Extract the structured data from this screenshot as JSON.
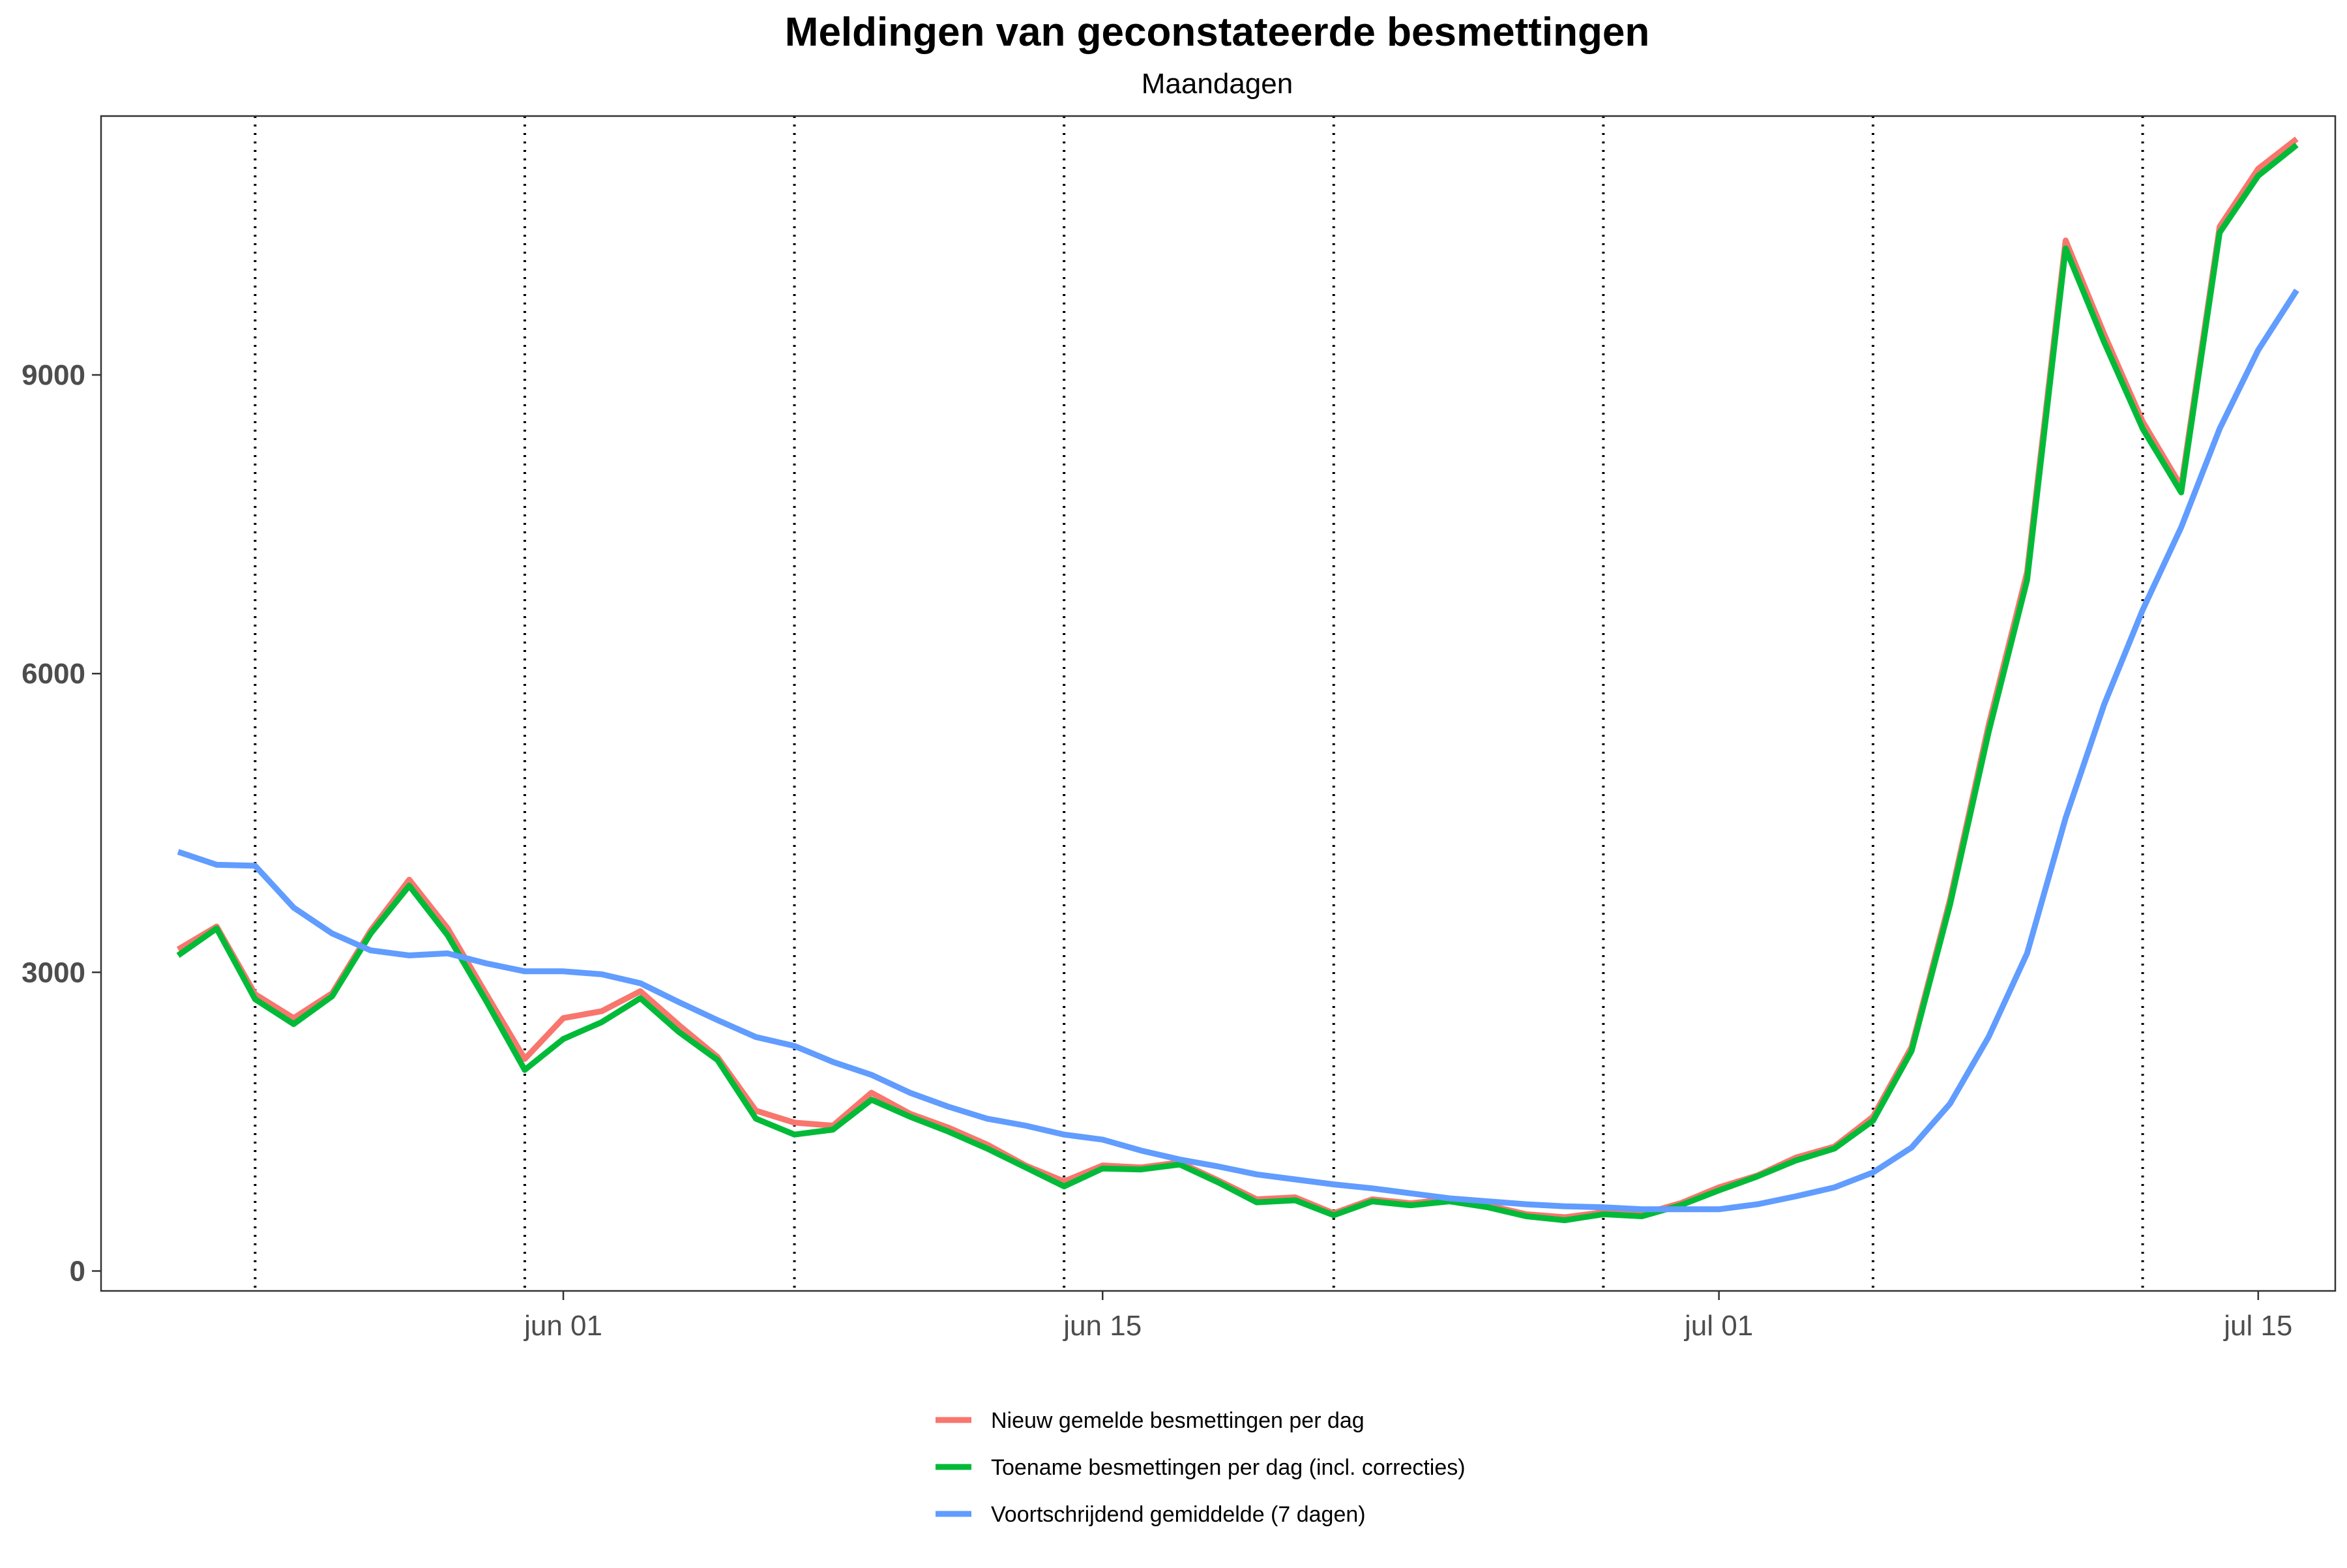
{
  "chart_data": {
    "type": "line",
    "title": "Meldingen van geconstateerde besmettingen",
    "subtitle": "Maandagen",
    "xlabel": "",
    "ylabel": "",
    "x_range": [
      "2020-05-20",
      "2020-07-17"
    ],
    "ylim": [
      -200,
      11600
    ],
    "yticks": [
      0,
      3000,
      6000,
      9000
    ],
    "xticks": [
      {
        "date": "2020-06-01",
        "label": "jun 01"
      },
      {
        "date": "2020-06-15",
        "label": "jun 15"
      },
      {
        "date": "2020-07-01",
        "label": "jul 01"
      },
      {
        "date": "2020-07-15",
        "label": "jul 15"
      }
    ],
    "grid": false,
    "legend_position": "bottom",
    "mondays": [
      "2020-05-24",
      "2020-05-31",
      "2020-06-07",
      "2020-06-14",
      "2020-06-21",
      "2020-06-28",
      "2020-07-05",
      "2020-07-12"
    ],
    "dates": [
      "2020-05-22",
      "2020-05-23",
      "2020-05-24",
      "2020-05-25",
      "2020-05-26",
      "2020-05-27",
      "2020-05-28",
      "2020-05-29",
      "2020-05-30",
      "2020-05-31",
      "2020-06-01",
      "2020-06-02",
      "2020-06-03",
      "2020-06-04",
      "2020-06-05",
      "2020-06-06",
      "2020-06-07",
      "2020-06-08",
      "2020-06-09",
      "2020-06-10",
      "2020-06-11",
      "2020-06-12",
      "2020-06-13",
      "2020-06-14",
      "2020-06-15",
      "2020-06-16",
      "2020-06-17",
      "2020-06-18",
      "2020-06-19",
      "2020-06-20",
      "2020-06-21",
      "2020-06-22",
      "2020-06-23",
      "2020-06-24",
      "2020-06-25",
      "2020-06-26",
      "2020-06-27",
      "2020-06-28",
      "2020-06-29",
      "2020-06-30",
      "2020-07-01",
      "2020-07-02",
      "2020-07-03",
      "2020-07-04",
      "2020-07-05",
      "2020-07-06",
      "2020-07-07",
      "2020-07-08",
      "2020-07-09",
      "2020-07-10",
      "2020-07-11",
      "2020-07-12",
      "2020-07-13",
      "2020-07-14",
      "2020-07-15",
      "2020-07-16"
    ],
    "series": [
      {
        "name": "Nieuw gemelde besmettingen per dag",
        "color": "#F8766D",
        "values": [
          3230,
          3460,
          2780,
          2540,
          2790,
          3420,
          3930,
          3440,
          2780,
          2130,
          2540,
          2610,
          2810,
          2470,
          2150,
          1610,
          1490,
          1460,
          1790,
          1580,
          1440,
          1270,
          1060,
          900,
          1060,
          1040,
          1090,
          910,
          720,
          740,
          580,
          720,
          680,
          720,
          660,
          570,
          540,
          590,
          570,
          680,
          840,
          960,
          1140,
          1250,
          1550,
          2250,
          3730,
          5480,
          7020,
          10350,
          9410,
          8530,
          7880,
          10490,
          11070,
          11370
        ]
      },
      {
        "name": "Toename besmettingen per dag (incl. correcties)",
        "color": "#00BA38",
        "values": [
          3170,
          3440,
          2730,
          2480,
          2760,
          3390,
          3870,
          3370,
          2710,
          2020,
          2330,
          2500,
          2740,
          2400,
          2120,
          1530,
          1370,
          1420,
          1720,
          1550,
          1400,
          1230,
          1040,
          850,
          1030,
          1020,
          1070,
          890,
          690,
          710,
          560,
          700,
          660,
          700,
          640,
          550,
          510,
          570,
          550,
          660,
          810,
          950,
          1110,
          1230,
          1510,
          2210,
          3680,
          5410,
          6940,
          10270,
          9330,
          8460,
          7820,
          10430,
          11000,
          11310
        ]
      },
      {
        "name": "Voortschrijdend gemiddelde (7 dagen)",
        "color": "#619CFF",
        "values": [
          4210,
          4080,
          4070,
          3650,
          3390,
          3220,
          3170,
          3190,
          3090,
          3010,
          3010,
          2980,
          2890,
          2700,
          2520,
          2350,
          2260,
          2100,
          1970,
          1790,
          1650,
          1530,
          1460,
          1370,
          1320,
          1210,
          1120,
          1050,
          970,
          920,
          870,
          830,
          780,
          730,
          700,
          670,
          650,
          640,
          620,
          620,
          620,
          670,
          750,
          840,
          990,
          1240,
          1680,
          2350,
          3190,
          4550,
          5690,
          6640,
          7470,
          8460,
          9250,
          9850
        ]
      }
    ]
  }
}
